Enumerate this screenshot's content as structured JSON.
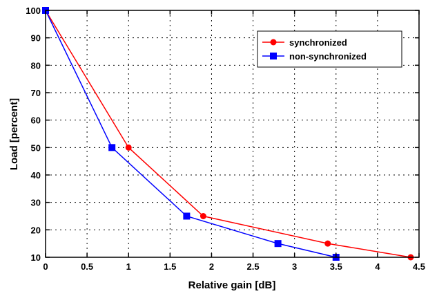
{
  "chart_data": {
    "type": "line",
    "xlabel": "Relative gain [dB]",
    "ylabel": "Load [percent]",
    "xlim": [
      0,
      4.5
    ],
    "ylim": [
      10,
      100
    ],
    "xticks": [
      0,
      0.5,
      1,
      1.5,
      2,
      2.5,
      3,
      3.5,
      4,
      4.5
    ],
    "xtick_labels": [
      "0",
      "0.5",
      "1",
      "1.5",
      "2",
      "2.5",
      "3",
      "3.5",
      "4",
      "4.5"
    ],
    "yticks": [
      10,
      20,
      30,
      40,
      50,
      60,
      70,
      80,
      90,
      100
    ],
    "ytick_labels": [
      "10",
      "20",
      "30",
      "40",
      "50",
      "60",
      "70",
      "80",
      "90",
      "100"
    ],
    "grid": true,
    "legend_position": "top-right",
    "series": [
      {
        "name": "synchronized",
        "color": "#ff0000",
        "line_color": "#ff0000",
        "marker": "circle",
        "x": [
          0,
          1.0,
          1.9,
          3.4,
          4.4
        ],
        "y": [
          100,
          50,
          25,
          15,
          10
        ]
      },
      {
        "name": "non-synchronized",
        "color": "#0000ff",
        "line_color": "#0000ff",
        "marker": "square",
        "x": [
          0,
          0.8,
          1.7,
          2.8,
          3.5
        ],
        "y": [
          100,
          50,
          25,
          15,
          10
        ]
      }
    ]
  }
}
